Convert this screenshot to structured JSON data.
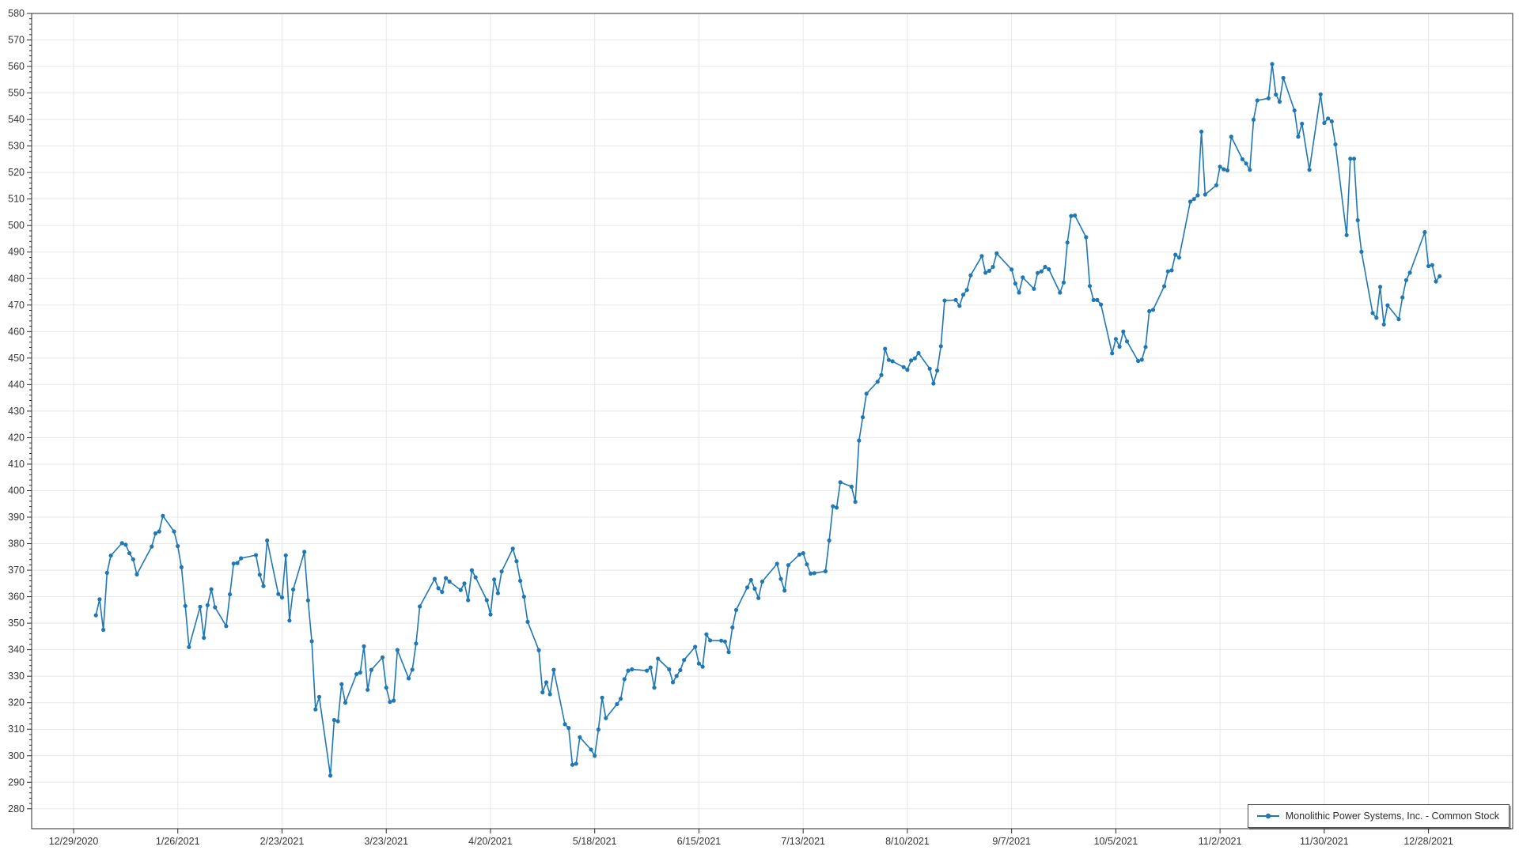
{
  "chart_data": {
    "type": "line",
    "title": "",
    "xlabel": "",
    "ylabel": "",
    "ylim": [
      280,
      580
    ],
    "y_step": 10,
    "y_minor_step": 2,
    "grid": true,
    "background_color": "#ffffff",
    "gridline_color": "#e8e8e8",
    "axis_color": "#2b2b2b",
    "label_color": "#333333",
    "legend_position": "bottom-right",
    "x_ticks": [
      "12/29/2020",
      "1/26/2021",
      "2/23/2021",
      "3/23/2021",
      "4/20/2021",
      "5/18/2021",
      "6/15/2021",
      "7/13/2021",
      "8/10/2021",
      "9/7/2021",
      "10/5/2021",
      "11/2/2021",
      "11/30/2021",
      "12/28/2021"
    ],
    "series": [
      {
        "name": "Monolithic Power Systems, Inc. - Common Stock",
        "color": "#1f77b4",
        "marker": "circle",
        "points": [
          [
            "1/4/2021",
            353
          ],
          [
            "1/5/2021",
            359
          ],
          [
            "1/6/2021",
            347.5
          ],
          [
            "1/7/2021",
            369
          ],
          [
            "1/8/2021",
            375.5
          ],
          [
            "1/11/2021",
            380.2
          ],
          [
            "1/12/2021",
            379.6
          ],
          [
            "1/13/2021",
            376.4
          ],
          [
            "1/14/2021",
            374.1
          ],
          [
            "1/15/2021",
            368.4
          ],
          [
            "1/19/2021",
            378.9
          ],
          [
            "1/20/2021",
            383.9
          ],
          [
            "1/21/2021",
            384.6
          ],
          [
            "1/22/2021",
            390.5
          ],
          [
            "1/25/2021",
            384.6
          ],
          [
            "1/26/2021",
            379.1
          ],
          [
            "1/27/2021",
            371.1
          ],
          [
            "1/28/2021",
            356.5
          ],
          [
            "1/29/2021",
            341
          ],
          [
            "2/1/2021",
            356.2
          ],
          [
            "2/2/2021",
            344.5
          ],
          [
            "2/3/2021",
            356.8
          ],
          [
            "2/4/2021",
            362.8
          ],
          [
            "2/5/2021",
            356
          ],
          [
            "2/8/2021",
            348.9
          ],
          [
            "2/9/2021",
            360.9
          ],
          [
            "2/10/2021",
            372.5
          ],
          [
            "2/11/2021",
            372.7
          ],
          [
            "2/12/2021",
            374.5
          ],
          [
            "2/16/2021",
            375.7
          ],
          [
            "2/17/2021",
            368.3
          ],
          [
            "2/18/2021",
            364
          ],
          [
            "2/19/2021",
            381.2
          ],
          [
            "2/22/2021",
            361
          ],
          [
            "2/23/2021",
            359.7
          ],
          [
            "2/24/2021",
            375.6
          ],
          [
            "2/25/2021",
            351
          ],
          [
            "2/26/2021",
            362.7
          ],
          [
            "3/1/2021",
            376.9
          ],
          [
            "3/2/2021",
            358.6
          ],
          [
            "3/3/2021",
            343.2
          ],
          [
            "3/4/2021",
            317.5
          ],
          [
            "3/5/2021",
            322.2
          ],
          [
            "3/8/2021",
            292.5
          ],
          [
            "3/9/2021",
            313.5
          ],
          [
            "3/10/2021",
            313
          ],
          [
            "3/11/2021",
            327
          ],
          [
            "3/12/2021",
            320
          ],
          [
            "3/15/2021",
            330.8
          ],
          [
            "3/16/2021",
            331.4
          ],
          [
            "3/17/2021",
            341.3
          ],
          [
            "3/18/2021",
            324.9
          ],
          [
            "3/19/2021",
            332.4
          ],
          [
            "3/22/2021",
            337.1
          ],
          [
            "3/23/2021",
            325.7
          ],
          [
            "3/24/2021",
            320.3
          ],
          [
            "3/25/2021",
            320.8
          ],
          [
            "3/26/2021",
            339.9
          ],
          [
            "3/29/2021",
            329.2
          ],
          [
            "3/30/2021",
            332.5
          ],
          [
            "3/31/2021",
            342.3
          ],
          [
            "4/1/2021",
            356.3
          ],
          [
            "4/5/2021",
            366.7
          ],
          [
            "4/6/2021",
            363.2
          ],
          [
            "4/7/2021",
            361.8
          ],
          [
            "4/8/2021",
            367
          ],
          [
            "4/9/2021",
            365.7
          ],
          [
            "4/12/2021",
            362.5
          ],
          [
            "4/13/2021",
            365
          ],
          [
            "4/14/2021",
            358.7
          ],
          [
            "4/15/2021",
            370
          ],
          [
            "4/16/2021",
            367.3
          ],
          [
            "4/19/2021",
            358.7
          ],
          [
            "4/20/2021",
            353.3
          ],
          [
            "4/21/2021",
            366.5
          ],
          [
            "4/22/2021",
            361.3
          ],
          [
            "4/23/2021",
            369.5
          ],
          [
            "4/26/2021",
            378.1
          ],
          [
            "4/27/2021",
            373.4
          ],
          [
            "4/28/2021",
            366
          ],
          [
            "4/29/2021",
            360
          ],
          [
            "4/30/2021",
            350.5
          ],
          [
            "5/3/2021",
            339.8
          ],
          [
            "5/4/2021",
            323.9
          ],
          [
            "5/5/2021",
            327.7
          ],
          [
            "5/6/2021",
            323.2
          ],
          [
            "5/7/2021",
            332.4
          ],
          [
            "5/10/2021",
            311.9
          ],
          [
            "5/11/2021",
            310.5
          ],
          [
            "5/12/2021",
            296.6
          ],
          [
            "5/13/2021",
            297
          ],
          [
            "5/14/2021",
            307
          ],
          [
            "5/17/2021",
            302.3
          ],
          [
            "5/18/2021",
            300
          ],
          [
            "5/19/2021",
            309.9
          ],
          [
            "5/20/2021",
            321.9
          ],
          [
            "5/21/2021",
            314.2
          ],
          [
            "5/24/2021",
            319.5
          ],
          [
            "5/25/2021",
            321.5
          ],
          [
            "5/26/2021",
            328.9
          ],
          [
            "5/27/2021",
            332.1
          ],
          [
            "5/28/2021",
            332.6
          ],
          [
            "6/1/2021",
            332.1
          ],
          [
            "6/2/2021",
            333.3
          ],
          [
            "6/3/2021",
            325.7
          ],
          [
            "6/4/2021",
            336.6
          ],
          [
            "6/7/2021",
            332.6
          ],
          [
            "6/8/2021",
            327.7
          ],
          [
            "6/9/2021",
            330.1
          ],
          [
            "6/10/2021",
            332.3
          ],
          [
            "6/11/2021",
            336.1
          ],
          [
            "6/14/2021",
            341.1
          ],
          [
            "6/15/2021",
            334.8
          ],
          [
            "6/16/2021",
            333.6
          ],
          [
            "6/17/2021",
            345.8
          ],
          [
            "6/18/2021",
            343.5
          ],
          [
            "6/21/2021",
            343.4
          ],
          [
            "6/22/2021",
            343.1
          ],
          [
            "6/23/2021",
            339.1
          ],
          [
            "6/24/2021",
            348.4
          ],
          [
            "6/25/2021",
            355
          ],
          [
            "6/28/2021",
            363.5
          ],
          [
            "6/29/2021",
            366.3
          ],
          [
            "6/30/2021",
            363
          ],
          [
            "7/1/2021",
            359.5
          ],
          [
            "7/2/2021",
            365.7
          ],
          [
            "7/6/2021",
            372.4
          ],
          [
            "7/7/2021",
            366.7
          ],
          [
            "7/8/2021",
            362.3
          ],
          [
            "7/9/2021",
            371.9
          ],
          [
            "7/12/2021",
            375.9
          ],
          [
            "7/13/2021",
            376.4
          ],
          [
            "7/14/2021",
            372.2
          ],
          [
            "7/15/2021",
            368.7
          ],
          [
            "7/16/2021",
            368.9
          ],
          [
            "7/19/2021",
            369.6
          ],
          [
            "7/20/2021",
            381.2
          ],
          [
            "7/21/2021",
            394.1
          ],
          [
            "7/22/2021",
            393.6
          ],
          [
            "7/23/2021",
            403.2
          ],
          [
            "7/26/2021",
            401.5
          ],
          [
            "7/27/2021",
            395.8
          ],
          [
            "7/28/2021",
            418.9
          ],
          [
            "7/29/2021",
            427.7
          ],
          [
            "7/30/2021",
            436.6
          ],
          [
            "8/2/2021",
            441.1
          ],
          [
            "8/3/2021",
            443.6
          ],
          [
            "8/4/2021",
            453.5
          ],
          [
            "8/5/2021",
            449.3
          ],
          [
            "8/6/2021",
            448.8
          ],
          [
            "8/9/2021",
            446.6
          ],
          [
            "8/10/2021",
            445.6
          ],
          [
            "8/11/2021",
            449.1
          ],
          [
            "8/12/2021",
            449.9
          ],
          [
            "8/13/2021",
            451.9
          ],
          [
            "8/16/2021",
            446
          ],
          [
            "8/17/2021",
            440.4
          ],
          [
            "8/18/2021",
            445.3
          ],
          [
            "8/19/2021",
            454.5
          ],
          [
            "8/20/2021",
            471.7
          ],
          [
            "8/23/2021",
            471.9
          ],
          [
            "8/24/2021",
            469.7
          ],
          [
            "8/25/2021",
            473.9
          ],
          [
            "8/26/2021",
            475.7
          ],
          [
            "8/27/2021",
            481.2
          ],
          [
            "8/30/2021",
            488.5
          ],
          [
            "8/31/2021",
            482.2
          ],
          [
            "9/1/2021",
            482.9
          ],
          [
            "9/2/2021",
            484.4
          ],
          [
            "9/3/2021",
            489.5
          ],
          [
            "9/7/2021",
            483.4
          ],
          [
            "9/8/2021",
            478.1
          ],
          [
            "9/9/2021",
            474.7
          ],
          [
            "9/10/2021",
            480.4
          ],
          [
            "9/13/2021",
            476.1
          ],
          [
            "9/14/2021",
            482.1
          ],
          [
            "9/15/2021",
            482.7
          ],
          [
            "9/16/2021",
            484.4
          ],
          [
            "9/17/2021",
            483.5
          ],
          [
            "9/20/2021",
            474.7
          ],
          [
            "9/21/2021",
            478.5
          ],
          [
            "9/22/2021",
            493.6
          ],
          [
            "9/23/2021",
            503.6
          ],
          [
            "9/24/2021",
            503.8
          ],
          [
            "9/27/2021",
            495.6
          ],
          [
            "9/28/2021",
            477.2
          ],
          [
            "9/29/2021",
            471.9
          ],
          [
            "9/30/2021",
            471.9
          ],
          [
            "10/1/2021",
            470.2
          ],
          [
            "10/4/2021",
            451.8
          ],
          [
            "10/5/2021",
            457.2
          ],
          [
            "10/6/2021",
            454.3
          ],
          [
            "10/7/2021",
            460
          ],
          [
            "10/8/2021",
            456.3
          ],
          [
            "10/11/2021",
            448.9
          ],
          [
            "10/12/2021",
            449.4
          ],
          [
            "10/13/2021",
            454.2
          ],
          [
            "10/14/2021",
            467.7
          ],
          [
            "10/15/2021",
            468.2
          ],
          [
            "10/18/2021",
            477.1
          ],
          [
            "10/19/2021",
            482.7
          ],
          [
            "10/20/2021",
            483.1
          ],
          [
            "10/21/2021",
            489
          ],
          [
            "10/22/2021",
            487.9
          ],
          [
            "10/25/2021",
            509
          ],
          [
            "10/26/2021",
            510
          ],
          [
            "10/27/2021",
            511.4
          ],
          [
            "10/28/2021",
            535.4
          ],
          [
            "10/29/2021",
            511.7
          ],
          [
            "11/1/2021",
            515.2
          ],
          [
            "11/2/2021",
            522.2
          ],
          [
            "11/3/2021",
            521.2
          ],
          [
            "11/4/2021",
            520.8
          ],
          [
            "11/5/2021",
            533.5
          ],
          [
            "11/8/2021",
            525
          ],
          [
            "11/9/2021",
            523.4
          ],
          [
            "11/10/2021",
            521
          ],
          [
            "11/11/2021",
            539.9
          ],
          [
            "11/12/2021",
            547.2
          ],
          [
            "11/15/2021",
            548
          ],
          [
            "11/16/2021",
            560.9
          ],
          [
            "11/17/2021",
            549.4
          ],
          [
            "11/18/2021",
            546.7
          ],
          [
            "11/19/2021",
            555.7
          ],
          [
            "11/22/2021",
            543.4
          ],
          [
            "11/23/2021",
            533.5
          ],
          [
            "11/24/2021",
            538.4
          ],
          [
            "11/26/2021",
            521
          ],
          [
            "11/29/2021",
            549.5
          ],
          [
            "11/30/2021",
            538.7
          ],
          [
            "12/1/2021",
            540.4
          ],
          [
            "12/2/2021",
            539.3
          ],
          [
            "12/3/2021",
            530.6
          ],
          [
            "12/6/2021",
            496.4
          ],
          [
            "12/7/2021",
            525.2
          ],
          [
            "12/8/2021",
            525.2
          ],
          [
            "12/9/2021",
            502
          ],
          [
            "12/10/2021",
            490.1
          ],
          [
            "12/13/2021",
            467
          ],
          [
            "12/14/2021",
            465.2
          ],
          [
            "12/15/2021",
            476.9
          ],
          [
            "12/16/2021",
            462.7
          ],
          [
            "12/17/2021",
            469.9
          ],
          [
            "12/20/2021",
            464.7
          ],
          [
            "12/21/2021",
            472.9
          ],
          [
            "12/22/2021",
            479.4
          ],
          [
            "12/23/2021",
            482.2
          ],
          [
            "12/27/2021",
            497.5
          ],
          [
            "12/28/2021",
            484.7
          ],
          [
            "12/29/2021",
            485.1
          ],
          [
            "12/30/2021",
            478.9
          ],
          [
            "12/31/2021",
            480.9
          ]
        ]
      }
    ]
  },
  "legend": {
    "label": "Monolithic Power Systems, Inc. - Common Stock"
  }
}
